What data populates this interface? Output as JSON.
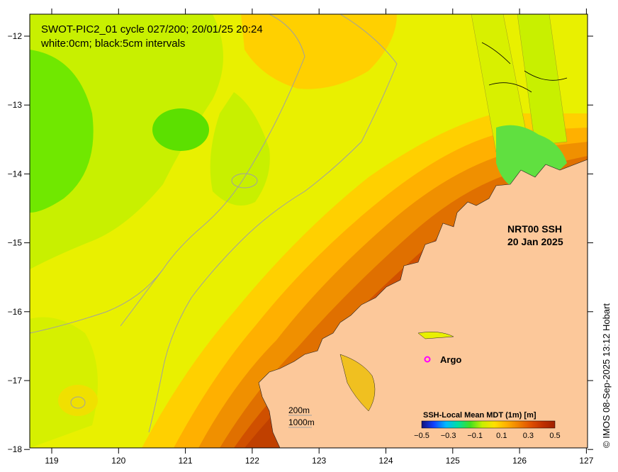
{
  "title_line1": "SWOT-PIC2_01 cycle 027/200; 20/01/25 20:24",
  "title_line2": "white:0cm; black:5cm intervals",
  "product_label_line1": "NRT00 SSH",
  "product_label_line2": "20 Jan 2025",
  "argo_label": "Argo",
  "depth_legend": [
    "200m",
    "1000m"
  ],
  "colorbar": {
    "title": "SSH-Local Mean MDT (1m) [m]",
    "tick_labels": [
      "−0.5",
      "−0.3",
      "−0.1",
      "0.1",
      "0.3",
      "0.5"
    ],
    "stops": [
      "#10107a",
      "#1040ff",
      "#00b8ff",
      "#00e0a0",
      "#40e020",
      "#c8f000",
      "#ffe000",
      "#ffb000",
      "#f08000",
      "#e05000",
      "#c03000",
      "#a02000"
    ]
  },
  "copyright": "© IMOS 08-Sep-2025 13:12 Hobart",
  "x_axis": {
    "ticks": [
      "119",
      "120",
      "121",
      "122",
      "123",
      "124",
      "125",
      "126",
      "127"
    ]
  },
  "y_axis": {
    "ticks": [
      "−12",
      "−13",
      "−14",
      "−15",
      "−16",
      "−17",
      "−18"
    ]
  },
  "colors": {
    "land": "#fcc89a",
    "argo": "#ff00ff",
    "ocean_mid": "#e6f000",
    "ocean_high": "#c04000",
    "ocean_low": "#70f000"
  }
}
